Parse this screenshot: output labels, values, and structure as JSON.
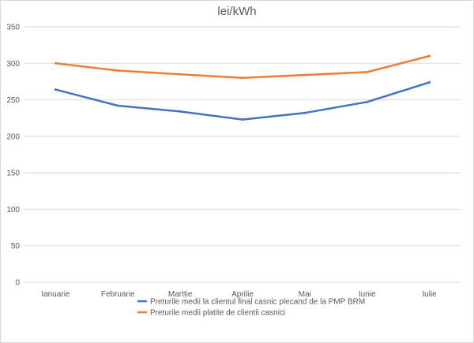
{
  "chart_data": {
    "type": "line",
    "title": "lei/kWh",
    "xlabel": "",
    "ylabel": "",
    "ylim": [
      0,
      350
    ],
    "yticks": [
      0,
      50,
      100,
      150,
      200,
      250,
      300,
      350
    ],
    "grid": true,
    "legend_position": "bottom",
    "categories": [
      "Ianuarie",
      "Februarie",
      "Marttie",
      "Aprilie",
      "Mai",
      "Iunie",
      "Iulie"
    ],
    "series": [
      {
        "name": "Preturile medii la clientul final casnic plecand de la PMP BRM",
        "color": "#4472c4",
        "values": [
          264,
          242,
          234,
          223,
          232,
          247,
          274
        ]
      },
      {
        "name": "Preturile medii platite de clientii casnici",
        "color": "#ed7d31",
        "values": [
          300,
          290,
          285,
          280,
          284,
          288,
          310
        ]
      }
    ]
  }
}
